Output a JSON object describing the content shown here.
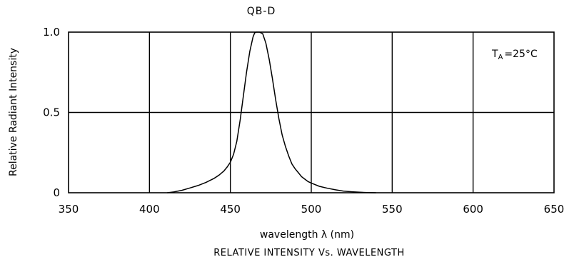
{
  "chart_data": {
    "type": "line",
    "title": "QB-D",
    "xlabel": "wavelength λ (nm)",
    "ylabel": "Relative Radiant Intensity",
    "caption": "RELATIVE INTENSITY Vs. WAVELENGTH",
    "annotation": {
      "prefix": "T",
      "subscript": "A",
      "value": "=25°C"
    },
    "xlim": [
      350,
      650
    ],
    "ylim": [
      0,
      1.0
    ],
    "xticks": [
      350,
      400,
      450,
      500,
      550,
      600,
      650
    ],
    "xtick_labels": [
      "350",
      "400",
      "450",
      "500",
      "550",
      "600",
      "650"
    ],
    "yticks": [
      0,
      0.5,
      1.0
    ],
    "ytick_labels": [
      "0",
      "0.5",
      "1.0"
    ],
    "grid": true,
    "series": [
      {
        "x": [
          411,
          415,
          420,
          425,
          430,
          435,
          440,
          443,
          446,
          448,
          450,
          452,
          454,
          456,
          458,
          460,
          462,
          464,
          465,
          466,
          468,
          470,
          472,
          474,
          476,
          478,
          480,
          482,
          484,
          486,
          488,
          490,
          492,
          494,
          496,
          498,
          500,
          505,
          510,
          515,
          520,
          525,
          530,
          535,
          540
        ],
        "y": [
          0.0,
          0.005,
          0.015,
          0.03,
          0.045,
          0.065,
          0.09,
          0.11,
          0.135,
          0.16,
          0.19,
          0.24,
          0.32,
          0.45,
          0.6,
          0.75,
          0.88,
          0.97,
          0.995,
          1.0,
          1.0,
          0.99,
          0.93,
          0.83,
          0.71,
          0.58,
          0.46,
          0.36,
          0.29,
          0.23,
          0.18,
          0.15,
          0.125,
          0.1,
          0.085,
          0.07,
          0.06,
          0.04,
          0.028,
          0.018,
          0.01,
          0.006,
          0.003,
          0.001,
          0.0
        ]
      }
    ]
  }
}
